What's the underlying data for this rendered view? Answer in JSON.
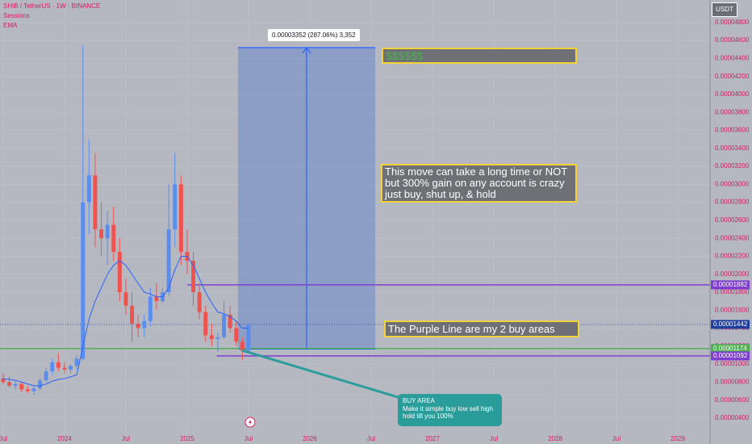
{
  "header": {
    "symbol": "SHIB / TetherUS · 1W · BINANCE",
    "sessions": "Sessions"
  },
  "currency": "USDT",
  "chart_data": {
    "type": "candlestick",
    "up_color": "#5b8def",
    "down_color": "#ef5350",
    "x": [
      2023.5,
      2023.55,
      2023.6,
      2023.65,
      2023.7,
      2023.75,
      2023.8,
      2023.85,
      2023.9,
      2023.95,
      2024,
      2024.05,
      2024.1,
      2024.15,
      2024.2,
      2024.25,
      2024.3,
      2024.35,
      2024.4,
      2024.45,
      2024.5,
      2024.55,
      2024.6,
      2024.65,
      2024.7,
      2024.75,
      2024.8,
      2024.85,
      2024.9,
      2024.95,
      2025,
      2025.05,
      2025.1,
      2025.15,
      2025.2,
      2025.25,
      2025.3,
      2025.35,
      2025.4,
      2025.45,
      2025.5
    ],
    "open": [
      8.4e-06,
      8e-06,
      7.6e-06,
      7.8e-06,
      7.2e-06,
      7e-06,
      7.3e-06,
      8.2e-06,
      9.2e-06,
      1.02e-05,
      9.6e-06,
      9.4e-06,
      9.8e-06,
      1.06e-05,
      2.8e-05,
      3.1e-05,
      2.5e-05,
      2.4e-05,
      2.55e-05,
      2.25e-05,
      1.8e-05,
      1.65e-05,
      1.45e-05,
      1.4e-05,
      1.48e-05,
      1.75e-05,
      1.7e-05,
      1.8e-05,
      2.5e-05,
      3e-05,
      2.25e-05,
      2.15e-05,
      1.8e-05,
      1.58e-05,
      1.32e-05,
      1.28e-05,
      1.3e-05,
      1.55e-05,
      1.4e-05,
      1.25e-05,
      1.15e-05
    ],
    "high": [
      9e-06,
      8.6e-06,
      8.2e-06,
      8e-06,
      7.6e-06,
      7.5e-06,
      8.4e-06,
      9.6e-06,
      1.06e-05,
      1.12e-05,
      1.02e-05,
      1e-05,
      1.1e-05,
      4.55e-05,
      3.5e-05,
      3.35e-05,
      2.8e-05,
      2.7e-05,
      2.75e-05,
      2.4e-05,
      1.95e-05,
      1.8e-05,
      1.55e-05,
      1.55e-05,
      1.85e-05,
      1.9e-05,
      1.85e-05,
      3e-05,
      3.35e-05,
      3.1e-05,
      2.5e-05,
      2.25e-05,
      1.9e-05,
      1.65e-05,
      1.45e-05,
      1.35e-05,
      1.7e-05,
      1.65e-05,
      1.48e-05,
      1.3e-05,
      1.46e-05
    ],
    "low": [
      7.8e-06,
      7.4e-06,
      7.2e-06,
      6.9e-06,
      6.8e-06,
      6.6e-06,
      7.1e-06,
      8e-06,
      8.8e-06,
      9.2e-06,
      9e-06,
      9e-06,
      9.4e-06,
      1.04e-05,
      2.45e-05,
      2.3e-05,
      2.2e-05,
      2.1e-05,
      2.15e-05,
      1.7e-05,
      1.55e-05,
      1.25e-05,
      1.3e-05,
      1.3e-05,
      1.42e-05,
      1.6e-05,
      1.68e-05,
      1.75e-05,
      2.3e-05,
      2.1e-05,
      2e-05,
      1.65e-05,
      1.5e-05,
      1.25e-05,
      1.2e-05,
      1.14e-05,
      1.28e-05,
      1.35e-05,
      1.2e-05,
      1.05e-05,
      1.12e-05
    ],
    "close": [
      8e-06,
      7.6e-06,
      7.8e-06,
      7.2e-06,
      7e-06,
      7.3e-06,
      8.2e-06,
      9.2e-06,
      1.02e-05,
      9.6e-06,
      9.4e-06,
      9.8e-06,
      1.06e-05,
      2.8e-05,
      3.1e-05,
      2.5e-05,
      2.4e-05,
      2.55e-05,
      2.25e-05,
      1.8e-05,
      1.65e-05,
      1.45e-05,
      1.4e-05,
      1.48e-05,
      1.75e-05,
      1.7e-05,
      1.8e-05,
      2.5e-05,
      3e-05,
      2.25e-05,
      2.15e-05,
      1.8e-05,
      1.58e-05,
      1.32e-05,
      1.28e-05,
      1.3e-05,
      1.55e-05,
      1.4e-05,
      1.25e-05,
      1.15e-05,
      1.442e-05
    ],
    "series": [
      {
        "name": "EMA",
        "color": "#2962ff",
        "values": [
          8.4e-06,
          8.3e-06,
          8.2e-06,
          8e-06,
          7.8e-06,
          7.6e-06,
          7.6e-06,
          7.8e-06,
          8.1e-06,
          8.3e-06,
          8.4e-06,
          8.6e-06,
          8.8e-06,
          1.2e-05,
          1.5e-05,
          1.7e-05,
          1.85e-05,
          2e-05,
          2.1e-05,
          2.15e-05,
          2.1e-05,
          2e-05,
          1.9e-05,
          1.8e-05,
          1.78e-05,
          1.75e-05,
          1.75e-05,
          1.85e-05,
          2.05e-05,
          2.2e-05,
          2.2e-05,
          2.1e-05,
          1.95e-05,
          1.8e-05,
          1.68e-05,
          1.58e-05,
          1.56e-05,
          1.53e-05,
          1.48e-05,
          1.4e-05,
          1.4e-05
        ]
      }
    ],
    "xlim": [
      2023.474,
      2029.263
    ],
    "ylim": [
      2.02e-06,
      5.05e-05
    ],
    "xticks": [
      {
        "value": 2023.5,
        "label": "Jul"
      },
      2024,
      {
        "value": 2024.5,
        "label": "Jul"
      },
      2025,
      {
        "value": 2025.5,
        "label": "Jul"
      },
      2026,
      {
        "value": 2026.5,
        "label": "Jul"
      },
      2027,
      {
        "value": 2027.5,
        "label": "Jul"
      },
      2028,
      {
        "value": 2028.5,
        "label": "Jul"
      },
      2029
    ],
    "yticks": [
      {
        "value": 4e-06,
        "label": "0.00000400"
      },
      {
        "value": 6e-06,
        "label": "0.00000600"
      },
      {
        "value": 8e-06,
        "label": "0.00000800"
      },
      {
        "value": 1e-05,
        "label": "0.00001000"
      },
      {
        "value": 1.2e-05,
        "label": "0.00001200"
      },
      {
        "value": 1.4e-05,
        "label": "0.00001400"
      },
      {
        "value": 1.6e-05,
        "label": "0.00001600"
      },
      {
        "value": 1.8e-05,
        "label": "0.00001800"
      },
      {
        "value": 2e-05,
        "label": "0.00002000"
      },
      {
        "value": 2.2e-05,
        "label": "0.00002200"
      },
      {
        "value": 2.4e-05,
        "label": "0.00002400"
      },
      {
        "value": 2.6e-05,
        "label": "0.00002600"
      },
      {
        "value": 2.8e-05,
        "label": "0.00002800"
      },
      {
        "value": 3e-05,
        "label": "0.00003000"
      },
      {
        "value": 3.2e-05,
        "label": "0.00003200"
      },
      {
        "value": 3.4e-05,
        "label": "0.00003400"
      },
      {
        "value": 3.6e-05,
        "label": "0.00003600"
      },
      {
        "value": 3.8e-05,
        "label": "0.00003800"
      },
      {
        "value": 4e-05,
        "label": "0.00004000"
      },
      {
        "value": 4.2e-05,
        "label": "0.00004200"
      },
      {
        "value": 4.4e-05,
        "label": "0.00004400"
      },
      {
        "value": 4.6e-05,
        "label": "0.00004600"
      },
      {
        "value": 4.8e-05,
        "label": "0.00004800"
      }
    ],
    "price_lines": [
      {
        "value": 1.882e-05,
        "label": "0.00001882",
        "color": "#7e3fd1",
        "from": 2025
      },
      {
        "value": 1.442e-05,
        "label": "0.00001442",
        "color": "#1f3f9a",
        "dashed": true
      },
      {
        "value": 1.174e-05,
        "label": "0.00001174",
        "color": "#4caf50"
      },
      {
        "value": 1.092e-05,
        "label": "0.00001092",
        "color": "#7e3fd1",
        "from": 2025.24
      }
    ],
    "position": {
      "x_start": 2025.414,
      "x_end": 2026.533,
      "entry": 1.168e-05,
      "target": 4.52e-05,
      "label": "0.00003352 (287.06%) 3,352"
    },
    "annotations": [
      "$$$$$$",
      "This move can take a long time or NOT but 300% gain on any account is crazy just buy, shut up, & hold",
      "The Purple Line are my 2 buy areas",
      "BUY AREA",
      "Make it simple buy low sell high hold till you 100%"
    ]
  }
}
